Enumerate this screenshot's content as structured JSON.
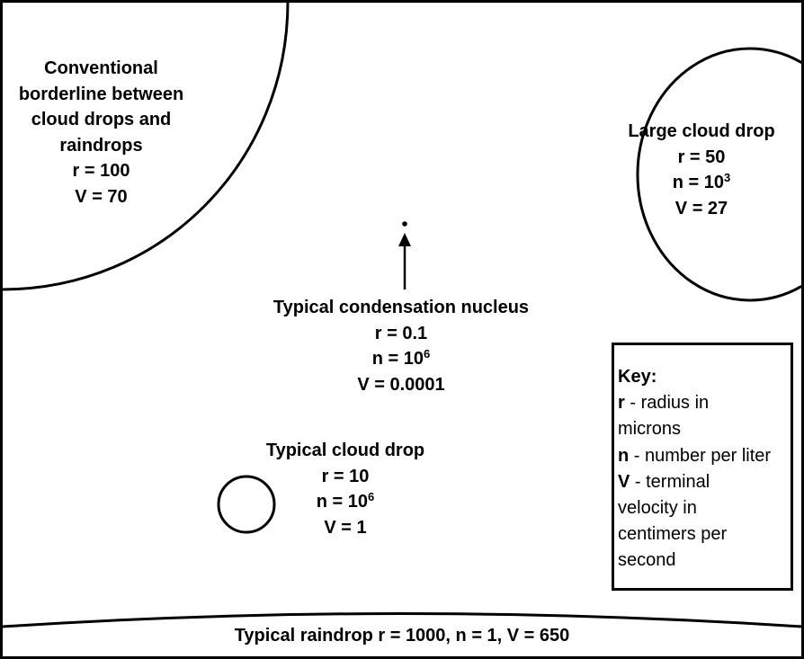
{
  "drops": {
    "borderline": {
      "lines": [
        "Conventional",
        "borderline between",
        "cloud drops and",
        "raindrops"
      ],
      "r": "r = 100",
      "v": "V = 70"
    },
    "large": {
      "title": "Large cloud drop",
      "r": "r = 50",
      "n_base": "n = 10",
      "n_exp": "3",
      "v": "V = 27"
    },
    "nucleus": {
      "title": "Typical condensation nucleus",
      "r": "r = 0.1",
      "n_base": "n = 10",
      "n_exp": "6",
      "v": "V = 0.0001"
    },
    "cloud": {
      "title": "Typical cloud drop",
      "r": "r = 10",
      "n_base": "n = 10",
      "n_exp": "6",
      "v": "V = 1"
    },
    "raindrop": {
      "caption": "Typical raindrop r = 1000, n = 1, V = 650"
    }
  },
  "key": {
    "title": "Key:",
    "r_letter": "r",
    "r_desc_1": " - radius in",
    "r_desc_2": "microns",
    "n_letter": "n",
    "n_desc": " - number per liter",
    "v_letter": "V",
    "v_desc_1": " - terminal",
    "v_desc_2": "velocity in",
    "v_desc_3": "centimers per",
    "v_desc_4": "second"
  }
}
